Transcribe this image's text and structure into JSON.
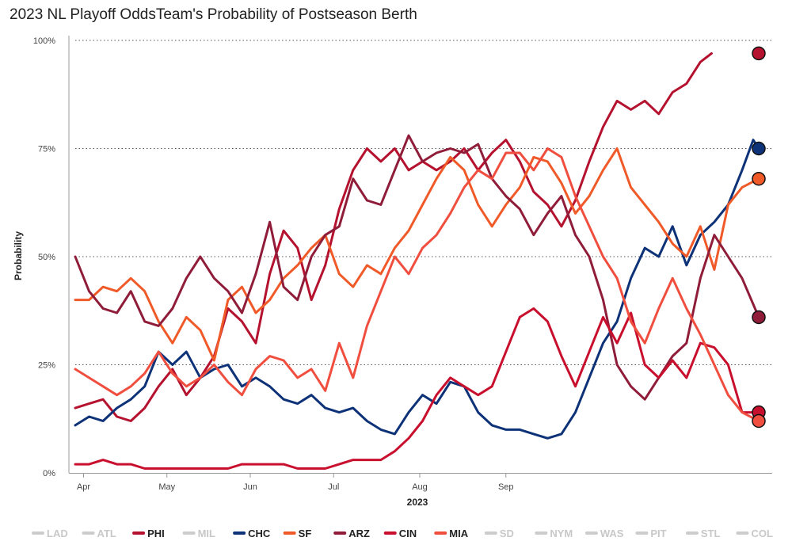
{
  "chart_data": {
    "type": "line",
    "title": "2023 NL Playoff OddsTeam's Probability of Postseason Berth",
    "xlabel": "2023",
    "ylabel": "Probability",
    "ylim": [
      0,
      100
    ],
    "yticks": [
      "0%",
      "25%",
      "50%",
      "75%",
      "100%"
    ],
    "xticks": [
      "Apr",
      "May",
      "Jun",
      "Jul",
      "Aug",
      "Sep"
    ],
    "grid": "horizontal dotted",
    "legend_position": "bottom",
    "series": [
      {
        "name": "LAD",
        "active": false,
        "color": "#cccccc",
        "values": []
      },
      {
        "name": "ATL",
        "active": false,
        "color": "#cccccc",
        "values": []
      },
      {
        "name": "PHI",
        "active": true,
        "color": "#b5122f",
        "values": [
          [
            0,
            15
          ],
          [
            5,
            16
          ],
          [
            10,
            17
          ],
          [
            15,
            13
          ],
          [
            20,
            12
          ],
          [
            25,
            15
          ],
          [
            30,
            20
          ],
          [
            35,
            24
          ],
          [
            40,
            18
          ],
          [
            45,
            22
          ],
          [
            50,
            27
          ],
          [
            55,
            38
          ],
          [
            60,
            35
          ],
          [
            65,
            30
          ],
          [
            70,
            46
          ],
          [
            75,
            56
          ],
          [
            80,
            52
          ],
          [
            85,
            40
          ],
          [
            90,
            48
          ],
          [
            95,
            61
          ],
          [
            100,
            70
          ],
          [
            105,
            75
          ],
          [
            110,
            72
          ],
          [
            115,
            75
          ],
          [
            120,
            70
          ],
          [
            125,
            72
          ],
          [
            130,
            70
          ],
          [
            135,
            72
          ],
          [
            140,
            75
          ],
          [
            145,
            70
          ],
          [
            150,
            74
          ],
          [
            155,
            77
          ],
          [
            160,
            72
          ],
          [
            165,
            65
          ],
          [
            170,
            62
          ],
          [
            175,
            57
          ],
          [
            180,
            63
          ],
          [
            185,
            72
          ],
          [
            190,
            80
          ],
          [
            195,
            86
          ],
          [
            200,
            84
          ],
          [
            205,
            86
          ],
          [
            210,
            83
          ],
          [
            215,
            88
          ],
          [
            220,
            90
          ],
          [
            225,
            95
          ],
          [
            229,
            97
          ]
        ]
      },
      {
        "name": "MIL",
        "active": false,
        "color": "#cccccc",
        "values": []
      },
      {
        "name": "CHC",
        "active": true,
        "color": "#0e3278",
        "values": [
          [
            0,
            11
          ],
          [
            5,
            13
          ],
          [
            10,
            12
          ],
          [
            15,
            15
          ],
          [
            20,
            17
          ],
          [
            25,
            20
          ],
          [
            30,
            28
          ],
          [
            35,
            25
          ],
          [
            40,
            28
          ],
          [
            45,
            22
          ],
          [
            50,
            24
          ],
          [
            55,
            25
          ],
          [
            60,
            20
          ],
          [
            65,
            22
          ],
          [
            70,
            20
          ],
          [
            75,
            17
          ],
          [
            80,
            16
          ],
          [
            85,
            18
          ],
          [
            90,
            15
          ],
          [
            95,
            14
          ],
          [
            100,
            15
          ],
          [
            105,
            12
          ],
          [
            110,
            10
          ],
          [
            115,
            9
          ],
          [
            120,
            14
          ],
          [
            125,
            18
          ],
          [
            130,
            16
          ],
          [
            135,
            21
          ],
          [
            140,
            20
          ],
          [
            145,
            14
          ],
          [
            150,
            11
          ],
          [
            155,
            10
          ],
          [
            160,
            10
          ],
          [
            165,
            9
          ],
          [
            170,
            8
          ],
          [
            175,
            9
          ],
          [
            180,
            14
          ],
          [
            185,
            22
          ],
          [
            190,
            30
          ],
          [
            195,
            35
          ],
          [
            200,
            45
          ],
          [
            205,
            52
          ],
          [
            210,
            50
          ],
          [
            215,
            57
          ],
          [
            220,
            48
          ],
          [
            225,
            55
          ],
          [
            230,
            58
          ],
          [
            235,
            62
          ],
          [
            240,
            70
          ],
          [
            244,
            77
          ],
          [
            246,
            75
          ]
        ]
      },
      {
        "name": "SF",
        "active": true,
        "color": "#ef5a28",
        "values": [
          [
            0,
            40
          ],
          [
            5,
            40
          ],
          [
            10,
            43
          ],
          [
            15,
            42
          ],
          [
            20,
            45
          ],
          [
            25,
            42
          ],
          [
            30,
            35
          ],
          [
            35,
            30
          ],
          [
            40,
            36
          ],
          [
            45,
            33
          ],
          [
            50,
            26
          ],
          [
            55,
            40
          ],
          [
            60,
            43
          ],
          [
            65,
            37
          ],
          [
            70,
            40
          ],
          [
            75,
            45
          ],
          [
            80,
            48
          ],
          [
            85,
            52
          ],
          [
            90,
            55
          ],
          [
            95,
            46
          ],
          [
            100,
            43
          ],
          [
            105,
            48
          ],
          [
            110,
            46
          ],
          [
            115,
            52
          ],
          [
            120,
            56
          ],
          [
            125,
            62
          ],
          [
            130,
            68
          ],
          [
            135,
            73
          ],
          [
            140,
            70
          ],
          [
            145,
            62
          ],
          [
            150,
            57
          ],
          [
            155,
            62
          ],
          [
            160,
            66
          ],
          [
            165,
            73
          ],
          [
            170,
            72
          ],
          [
            175,
            67
          ],
          [
            180,
            60
          ],
          [
            185,
            64
          ],
          [
            190,
            70
          ],
          [
            195,
            75
          ],
          [
            200,
            66
          ],
          [
            205,
            62
          ],
          [
            210,
            58
          ],
          [
            215,
            53
          ],
          [
            220,
            50
          ],
          [
            225,
            57
          ],
          [
            230,
            47
          ],
          [
            235,
            62
          ],
          [
            240,
            66
          ],
          [
            246,
            68
          ]
        ]
      },
      {
        "name": "ARZ",
        "active": true,
        "color": "#8f1d3a",
        "values": [
          [
            0,
            50
          ],
          [
            5,
            42
          ],
          [
            10,
            38
          ],
          [
            15,
            37
          ],
          [
            20,
            42
          ],
          [
            25,
            35
          ],
          [
            30,
            34
          ],
          [
            35,
            38
          ],
          [
            40,
            45
          ],
          [
            45,
            50
          ],
          [
            50,
            45
          ],
          [
            55,
            42
          ],
          [
            60,
            37
          ],
          [
            65,
            46
          ],
          [
            70,
            58
          ],
          [
            75,
            43
          ],
          [
            80,
            40
          ],
          [
            85,
            50
          ],
          [
            90,
            55
          ],
          [
            95,
            57
          ],
          [
            100,
            68
          ],
          [
            105,
            63
          ],
          [
            110,
            62
          ],
          [
            115,
            70
          ],
          [
            120,
            78
          ],
          [
            125,
            72
          ],
          [
            130,
            74
          ],
          [
            135,
            75
          ],
          [
            140,
            74
          ],
          [
            145,
            76
          ],
          [
            150,
            68
          ],
          [
            155,
            64
          ],
          [
            160,
            61
          ],
          [
            165,
            55
          ],
          [
            170,
            60
          ],
          [
            175,
            64
          ],
          [
            180,
            55
          ],
          [
            185,
            50
          ],
          [
            190,
            40
          ],
          [
            195,
            25
          ],
          [
            200,
            20
          ],
          [
            205,
            17
          ],
          [
            210,
            22
          ],
          [
            215,
            27
          ],
          [
            220,
            30
          ],
          [
            225,
            45
          ],
          [
            230,
            55
          ],
          [
            235,
            50
          ],
          [
            240,
            45
          ],
          [
            246,
            36
          ]
        ]
      },
      {
        "name": "CIN",
        "active": true,
        "color": "#c8102e",
        "values": [
          [
            0,
            2
          ],
          [
            5,
            2
          ],
          [
            10,
            3
          ],
          [
            15,
            2
          ],
          [
            20,
            2
          ],
          [
            25,
            1
          ],
          [
            30,
            1
          ],
          [
            35,
            1
          ],
          [
            40,
            1
          ],
          [
            45,
            1
          ],
          [
            50,
            1
          ],
          [
            55,
            1
          ],
          [
            60,
            2
          ],
          [
            65,
            2
          ],
          [
            70,
            2
          ],
          [
            75,
            2
          ],
          [
            80,
            1
          ],
          [
            85,
            1
          ],
          [
            90,
            1
          ],
          [
            95,
            2
          ],
          [
            100,
            3
          ],
          [
            105,
            3
          ],
          [
            110,
            3
          ],
          [
            115,
            5
          ],
          [
            120,
            8
          ],
          [
            125,
            12
          ],
          [
            130,
            18
          ],
          [
            135,
            22
          ],
          [
            140,
            20
          ],
          [
            145,
            18
          ],
          [
            150,
            20
          ],
          [
            155,
            28
          ],
          [
            160,
            36
          ],
          [
            165,
            38
          ],
          [
            170,
            35
          ],
          [
            175,
            27
          ],
          [
            180,
            20
          ],
          [
            185,
            28
          ],
          [
            190,
            36
          ],
          [
            195,
            30
          ],
          [
            200,
            37
          ],
          [
            205,
            25
          ],
          [
            210,
            22
          ],
          [
            215,
            26
          ],
          [
            220,
            22
          ],
          [
            225,
            30
          ],
          [
            230,
            29
          ],
          [
            235,
            25
          ],
          [
            240,
            14
          ],
          [
            246,
            14
          ]
        ]
      },
      {
        "name": "MIA",
        "active": true,
        "color": "#f04e3e",
        "values": [
          [
            0,
            24
          ],
          [
            5,
            22
          ],
          [
            10,
            20
          ],
          [
            15,
            18
          ],
          [
            20,
            20
          ],
          [
            25,
            23
          ],
          [
            30,
            28
          ],
          [
            35,
            23
          ],
          [
            40,
            20
          ],
          [
            45,
            22
          ],
          [
            50,
            25
          ],
          [
            55,
            21
          ],
          [
            60,
            18
          ],
          [
            65,
            24
          ],
          [
            70,
            27
          ],
          [
            75,
            26
          ],
          [
            80,
            22
          ],
          [
            85,
            24
          ],
          [
            90,
            19
          ],
          [
            95,
            30
          ],
          [
            100,
            22
          ],
          [
            105,
            34
          ],
          [
            110,
            42
          ],
          [
            115,
            50
          ],
          [
            120,
            46
          ],
          [
            125,
            52
          ],
          [
            130,
            55
          ],
          [
            135,
            60
          ],
          [
            140,
            66
          ],
          [
            145,
            70
          ],
          [
            150,
            68
          ],
          [
            155,
            74
          ],
          [
            160,
            74
          ],
          [
            165,
            70
          ],
          [
            170,
            75
          ],
          [
            175,
            73
          ],
          [
            180,
            64
          ],
          [
            185,
            57
          ],
          [
            190,
            50
          ],
          [
            195,
            45
          ],
          [
            200,
            35
          ],
          [
            205,
            30
          ],
          [
            210,
            38
          ],
          [
            215,
            45
          ],
          [
            220,
            38
          ],
          [
            225,
            32
          ],
          [
            230,
            25
          ],
          [
            235,
            18
          ],
          [
            240,
            14
          ],
          [
            246,
            12
          ]
        ]
      },
      {
        "name": "SD",
        "active": false,
        "color": "#cccccc",
        "values": []
      },
      {
        "name": "NYM",
        "active": false,
        "color": "#cccccc",
        "values": []
      },
      {
        "name": "WAS",
        "active": false,
        "color": "#cccccc",
        "values": []
      },
      {
        "name": "PIT",
        "active": false,
        "color": "#cccccc",
        "values": []
      },
      {
        "name": "STL",
        "active": false,
        "color": "#cccccc",
        "values": []
      },
      {
        "name": "COL",
        "active": false,
        "color": "#cccccc",
        "values": []
      }
    ],
    "end_markers": [
      {
        "name": "PHI",
        "value": 97
      },
      {
        "name": "CHC",
        "value": 75
      },
      {
        "name": "SF",
        "value": 68
      },
      {
        "name": "ARZ",
        "value": 36
      },
      {
        "name": "CIN",
        "value": 14
      },
      {
        "name": "MIA",
        "value": 12
      }
    ],
    "x_range_days": [
      0,
      246
    ],
    "x_tick_days": [
      3,
      33,
      63,
      93,
      124,
      155
    ]
  }
}
